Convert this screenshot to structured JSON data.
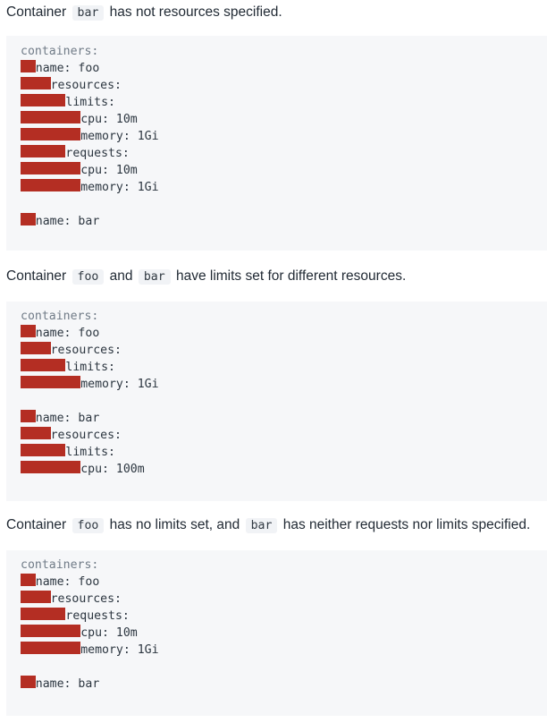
{
  "colors": {
    "indent_highlight": "#b42e23",
    "code_background": "#f6f7f9",
    "inline_code_background": "#f1f3f6",
    "text": "#222b35"
  },
  "sections": [
    {
      "text_parts": [
        {
          "t": "text",
          "v": "Container "
        },
        {
          "t": "code",
          "v": "bar"
        },
        {
          "t": "text",
          "v": " has not resources specified."
        }
      ],
      "lines": [
        {
          "indent": 0,
          "text": "containers:"
        },
        {
          "indent": 2,
          "text": "name: foo"
        },
        {
          "indent": 4,
          "text": "resources:"
        },
        {
          "indent": 6,
          "text": "limits:"
        },
        {
          "indent": 8,
          "text": "cpu: 10m"
        },
        {
          "indent": 8,
          "text": "memory: 1Gi"
        },
        {
          "indent": 6,
          "text": "requests:"
        },
        {
          "indent": 8,
          "text": "cpu: 10m"
        },
        {
          "indent": 8,
          "text": "memory: 1Gi"
        },
        {
          "indent": -1,
          "text": ""
        },
        {
          "indent": 2,
          "text": "name: bar"
        }
      ]
    },
    {
      "text_parts": [
        {
          "t": "text",
          "v": "Container "
        },
        {
          "t": "code",
          "v": "foo"
        },
        {
          "t": "text",
          "v": " and "
        },
        {
          "t": "code",
          "v": "bar"
        },
        {
          "t": "text",
          "v": " have limits set for different resources."
        }
      ],
      "lines": [
        {
          "indent": 0,
          "text": "containers:"
        },
        {
          "indent": 2,
          "text": "name: foo"
        },
        {
          "indent": 4,
          "text": "resources:"
        },
        {
          "indent": 6,
          "text": "limits:"
        },
        {
          "indent": 8,
          "text": "memory: 1Gi"
        },
        {
          "indent": -1,
          "text": ""
        },
        {
          "indent": 2,
          "text": "name: bar"
        },
        {
          "indent": 4,
          "text": "resources:"
        },
        {
          "indent": 6,
          "text": "limits:"
        },
        {
          "indent": 8,
          "text": "cpu: 100m"
        }
      ]
    },
    {
      "text_parts": [
        {
          "t": "text",
          "v": "Container "
        },
        {
          "t": "code",
          "v": "foo"
        },
        {
          "t": "text",
          "v": " has no limits set, and "
        },
        {
          "t": "code",
          "v": "bar"
        },
        {
          "t": "text",
          "v": " has neither requests nor limits specified."
        }
      ],
      "lines": [
        {
          "indent": 0,
          "text": "containers:"
        },
        {
          "indent": 2,
          "text": "name: foo"
        },
        {
          "indent": 4,
          "text": "resources:"
        },
        {
          "indent": 6,
          "text": "requests:"
        },
        {
          "indent": 8,
          "text": "cpu: 10m"
        },
        {
          "indent": 8,
          "text": "memory: 1Gi"
        },
        {
          "indent": -1,
          "text": ""
        },
        {
          "indent": 2,
          "text": "name: bar"
        }
      ]
    }
  ]
}
